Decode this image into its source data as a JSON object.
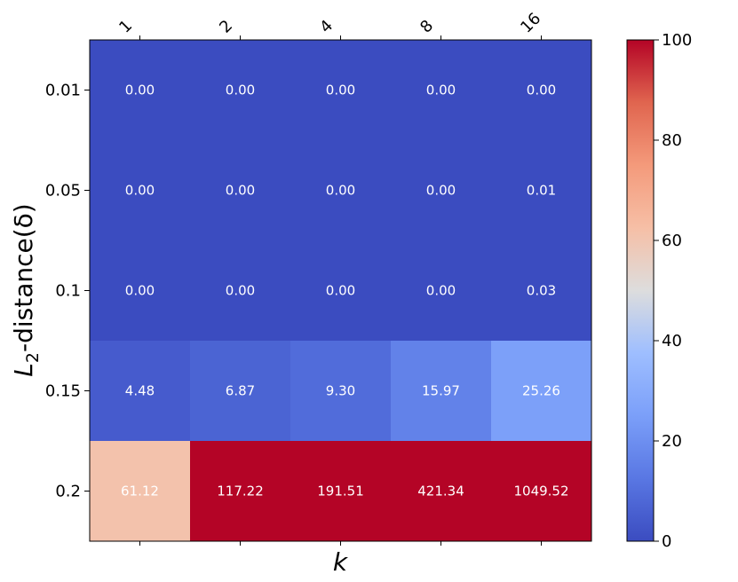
{
  "chart_data": {
    "type": "heatmap",
    "xlabel": "k",
    "ylabel_main": "L",
    "ylabel_sub": "2",
    "ylabel_rest": "-distance(δ)",
    "x_categories": [
      "1",
      "2",
      "4",
      "8",
      "16"
    ],
    "y_categories": [
      "0.01",
      "0.05",
      "0.1",
      "0.15",
      "0.2"
    ],
    "values": [
      [
        0.0,
        0.0,
        0.0,
        0.0,
        0.0
      ],
      [
        0.0,
        0.0,
        0.0,
        0.0,
        0.01
      ],
      [
        0.0,
        0.0,
        0.0,
        0.0,
        0.03
      ],
      [
        4.48,
        6.87,
        9.3,
        15.97,
        25.26
      ],
      [
        61.12,
        117.22,
        191.51,
        421.34,
        1049.52
      ]
    ],
    "cell_labels": [
      [
        "0.00",
        "0.00",
        "0.00",
        "0.00",
        "0.00"
      ],
      [
        "0.00",
        "0.00",
        "0.00",
        "0.00",
        "0.01"
      ],
      [
        "0.00",
        "0.00",
        "0.00",
        "0.00",
        "0.03"
      ],
      [
        "4.48",
        "6.87",
        "9.30",
        "15.97",
        "25.26"
      ],
      [
        "61.12",
        "117.22",
        "191.51",
        "421.34",
        "1049.52"
      ]
    ],
    "colorbar": {
      "min": 0,
      "max": 100,
      "ticks": [
        "0",
        "20",
        "40",
        "60",
        "80",
        "100"
      ],
      "colormap": "coolwarm"
    },
    "x_tick_position": "top",
    "x_tick_rotation_deg": -45,
    "grid": false
  }
}
